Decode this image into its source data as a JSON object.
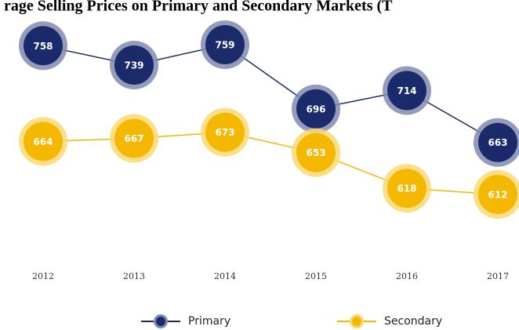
{
  "chart_data": {
    "type": "line",
    "title": "rage Selling Prices on Primary and Secondary Markets (T",
    "categories": [
      "2012",
      "2013",
      "2014",
      "2015",
      "2016",
      "2017"
    ],
    "series": [
      {
        "name": "Primary",
        "color": "#1b2a6b",
        "values": [
          758,
          739,
          759,
          696,
          714,
          663
        ]
      },
      {
        "name": "Secondary",
        "color": "#f5b800",
        "values": [
          664,
          667,
          673,
          653,
          618,
          612
        ]
      }
    ]
  }
}
